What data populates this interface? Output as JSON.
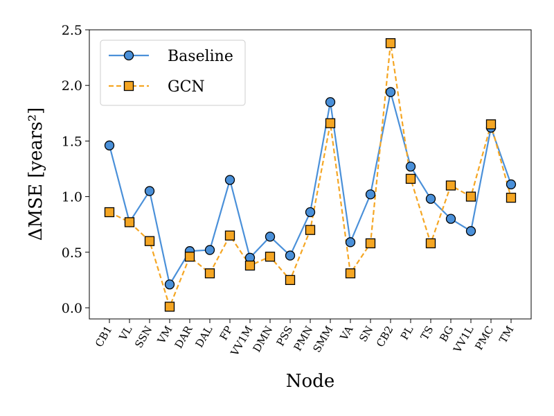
{
  "chart_data": {
    "type": "line",
    "xlabel": "Node",
    "ylabel": "ΔMSE [years²]",
    "ylim": [
      -0.1,
      2.5
    ],
    "yticks": [
      "0.0",
      "0.5",
      "1.0",
      "1.5",
      "2.0",
      "2.5"
    ],
    "categories": [
      "CB1",
      "VL",
      "SSN",
      "VM",
      "DAR",
      "DAL",
      "FP",
      "VV1M",
      "DMN",
      "PSS",
      "PMN",
      "SMM",
      "VA",
      "SN",
      "CB2",
      "PL",
      "TS",
      "BG",
      "VV1L",
      "PMC",
      "TM"
    ],
    "series": [
      {
        "name": "Baseline",
        "color": "#4a90d9",
        "marker": "circle",
        "linestyle": "solid",
        "values": [
          1.46,
          0.77,
          1.05,
          0.21,
          0.51,
          0.52,
          1.15,
          0.45,
          0.64,
          0.47,
          0.86,
          1.85,
          0.59,
          1.02,
          1.94,
          1.27,
          0.98,
          0.8,
          0.69,
          1.62,
          1.11
        ]
      },
      {
        "name": "GCN",
        "color": "#f5a623",
        "marker": "square",
        "linestyle": "dashed",
        "values": [
          0.86,
          0.77,
          0.6,
          0.01,
          0.46,
          0.31,
          0.65,
          0.38,
          0.46,
          0.25,
          0.7,
          1.66,
          0.31,
          0.58,
          2.38,
          1.16,
          0.58,
          1.1,
          1.0,
          1.65,
          0.99
        ]
      }
    ],
    "legend_position": "top-left",
    "grid": false
  }
}
